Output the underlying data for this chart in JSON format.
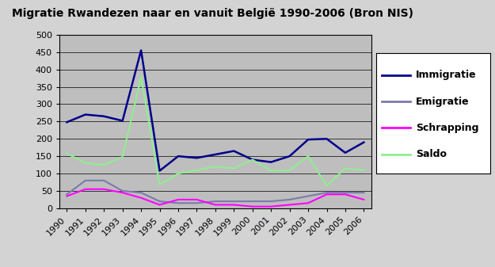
{
  "title": "Migratie Rwandezen naar en vanuit België 1990-2006 (Bron NIS)",
  "years": [
    1990,
    1991,
    1992,
    1993,
    1994,
    1995,
    1996,
    1997,
    1998,
    1999,
    2000,
    2001,
    2002,
    2003,
    2004,
    2005,
    2006
  ],
  "immigratie": [
    248,
    270,
    265,
    252,
    455,
    108,
    150,
    145,
    155,
    165,
    140,
    133,
    150,
    198,
    200,
    160,
    190
  ],
  "emigratie": [
    40,
    80,
    80,
    50,
    45,
    20,
    15,
    15,
    20,
    20,
    20,
    20,
    25,
    35,
    45,
    45,
    45
  ],
  "schrapping": [
    35,
    55,
    55,
    45,
    30,
    10,
    25,
    25,
    10,
    10,
    5,
    5,
    10,
    15,
    40,
    40,
    25
  ],
  "saldo": [
    158,
    130,
    125,
    148,
    378,
    68,
    100,
    110,
    120,
    115,
    140,
    108,
    110,
    150,
    65,
    115,
    110
  ],
  "immigratie_color": "#00008B",
  "emigratie_color": "#7B7BAA",
  "schrapping_color": "#FF00FF",
  "saldo_color": "#90EE90",
  "plot_bg_color": "#BEBEBE",
  "fig_bg_color": "#D3D3D3",
  "ylim": [
    0,
    500
  ],
  "yticks": [
    0,
    50,
    100,
    150,
    200,
    250,
    300,
    350,
    400,
    450,
    500
  ],
  "legend_labels": [
    "Immigratie",
    "Emigratie",
    "Schrapping",
    "Saldo"
  ],
  "title_fontsize": 10,
  "tick_fontsize": 8,
  "legend_fontsize": 9
}
